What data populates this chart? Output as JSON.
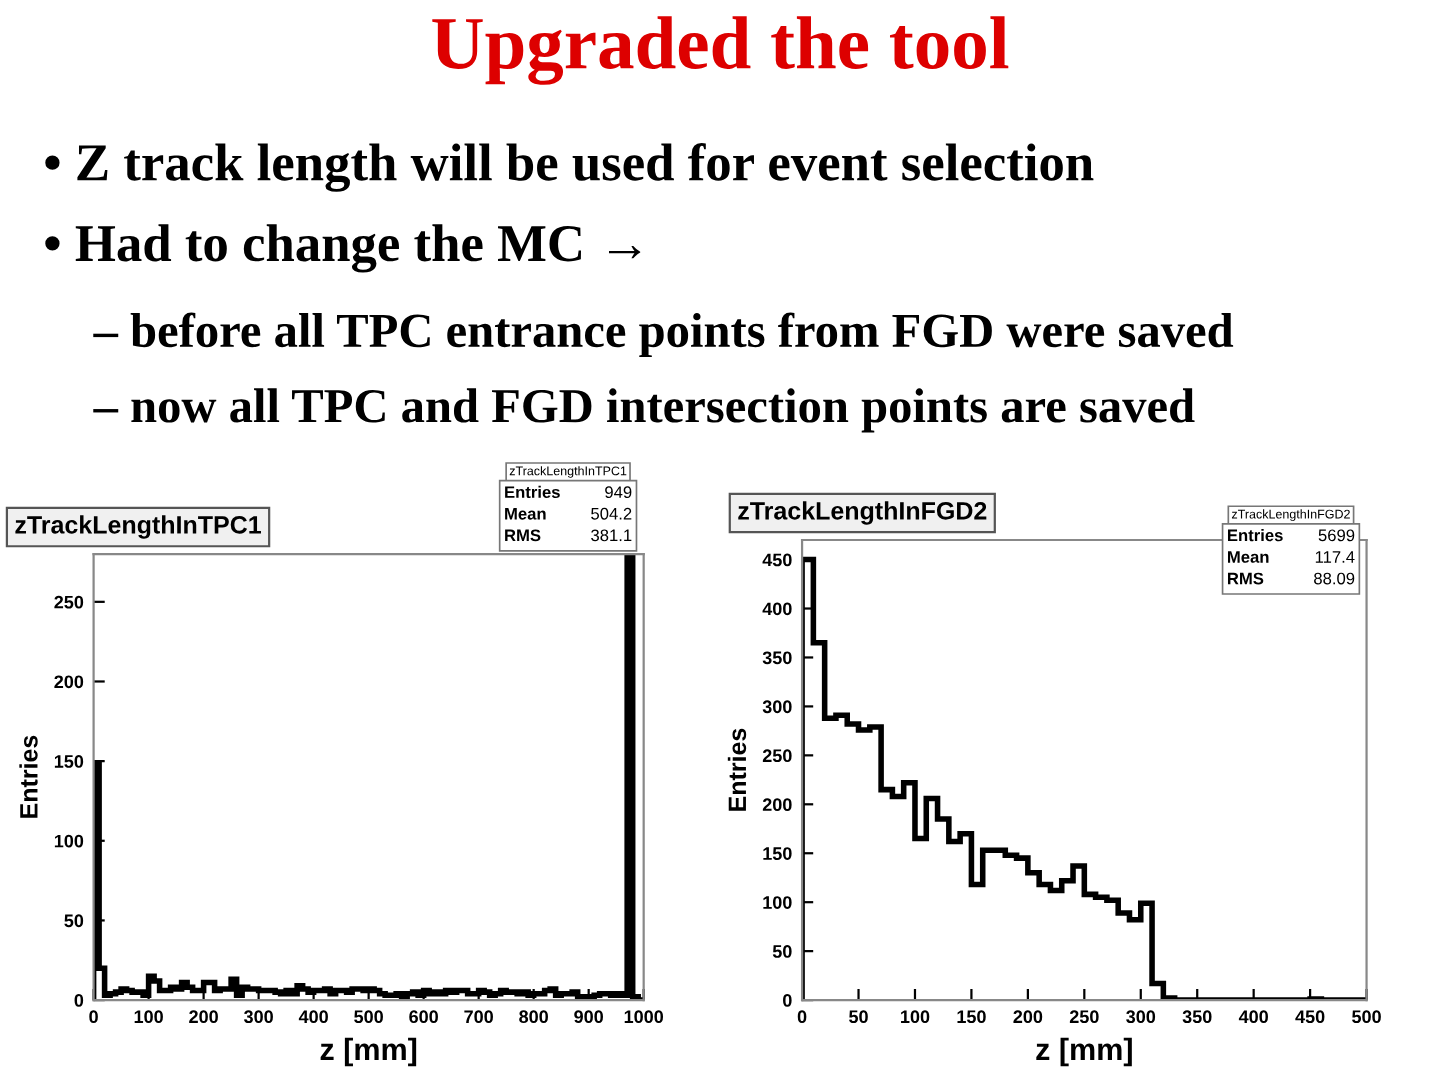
{
  "chart_data": [
    {
      "type": "other",
      "title": "Upgraded the tool",
      "color": "#dd0000",
      "annotations": [
        "• Z track length will be used for event selection",
        "• Had to change the MC →",
        "– before all TPC entrance points from FGD were saved",
        "– now all TPC and FGD intersection points are saved"
      ]
    },
    {
      "type": "histogram",
      "title": "zTrackLengthInTPC1",
      "xlabel": "z [mm]",
      "ylabel": "Entries",
      "color": "#000000",
      "bins": [
        0,
        10,
        20,
        30,
        40,
        50,
        60,
        70,
        80,
        90,
        100,
        110,
        120,
        130,
        140,
        150,
        160,
        170,
        180,
        190,
        200,
        210,
        220,
        230,
        240,
        250,
        260,
        270,
        280,
        290,
        300,
        310,
        320,
        330,
        340,
        350,
        360,
        370,
        380,
        390,
        400,
        410,
        420,
        430,
        440,
        450,
        460,
        470,
        480,
        490,
        500,
        510,
        520,
        530,
        540,
        550,
        560,
        570,
        580,
        590,
        600,
        610,
        620,
        630,
        640,
        650,
        660,
        670,
        680,
        690,
        700,
        710,
        720,
        730,
        740,
        750,
        760,
        770,
        780,
        790,
        800,
        810,
        820,
        830,
        840,
        850,
        860,
        870,
        880,
        890,
        900,
        910,
        920,
        930,
        940,
        950,
        960,
        970,
        980,
        990,
        1000
      ],
      "values": [
        148,
        20,
        3,
        4,
        5,
        7,
        6,
        5,
        5,
        3,
        15,
        12,
        6,
        6,
        8,
        7,
        11,
        8,
        6,
        6,
        11,
        11,
        6,
        7,
        7,
        13,
        3,
        8,
        7,
        7,
        6,
        6,
        6,
        5,
        4,
        6,
        4,
        9,
        7,
        5,
        6,
        6,
        7,
        4,
        6,
        6,
        5,
        7,
        7,
        6,
        7,
        6,
        4,
        3,
        3,
        4,
        2,
        4,
        5,
        3,
        6,
        4,
        5,
        4,
        6,
        5,
        6,
        6,
        4,
        4,
        6,
        5,
        3,
        4,
        6,
        5,
        5,
        4,
        5,
        3,
        4,
        4,
        6,
        7,
        3,
        4,
        4,
        5,
        2,
        2,
        2,
        3,
        4,
        4,
        3,
        4,
        3,
        280,
        2,
        0
      ],
      "xlim": [
        0,
        1000
      ],
      "ylim": [
        0,
        280
      ],
      "xticks": [
        0,
        100,
        200,
        300,
        400,
        500,
        600,
        700,
        800,
        900,
        1000
      ],
      "yticks": [
        0,
        50,
        100,
        150,
        200,
        250
      ],
      "annotations": [
        "zTrackLengthInTPC1",
        "Entries 949",
        "Mean 504.2",
        "RMS 381.1"
      ]
    },
    {
      "type": "histogram",
      "title": "zTrackLengthInFGD2",
      "xlabel": "z [mm]",
      "ylabel": "Entries",
      "color": "#000000",
      "bins": [
        0,
        10,
        20,
        30,
        40,
        50,
        60,
        70,
        80,
        90,
        100,
        110,
        120,
        130,
        140,
        150,
        160,
        170,
        180,
        190,
        200,
        210,
        220,
        230,
        240,
        250,
        260,
        270,
        280,
        290,
        300,
        310,
        320,
        330,
        340,
        350,
        360,
        370,
        380,
        390,
        400,
        410,
        420,
        430,
        440,
        450,
        460,
        470,
        480,
        490,
        500
      ],
      "values": [
        450,
        365,
        288,
        291,
        282,
        276,
        279,
        215,
        208,
        222,
        165,
        206,
        185,
        162,
        170,
        118,
        153,
        153,
        148,
        145,
        130,
        118,
        112,
        122,
        137,
        108,
        105,
        102,
        89,
        82,
        99,
        17,
        2,
        0,
        0,
        0,
        0,
        0,
        0,
        0,
        0,
        0,
        0,
        0,
        0,
        1,
        0,
        0,
        0,
        0
      ],
      "xlim": [
        0,
        500
      ],
      "ylim": [
        0,
        470
      ],
      "xticks": [
        0,
        50,
        100,
        150,
        200,
        250,
        300,
        350,
        400,
        450,
        500
      ],
      "yticks": [
        0,
        50,
        100,
        150,
        200,
        250,
        300,
        350,
        400,
        450
      ],
      "annotations": [
        "zTrackLengthInFGD2",
        "Entries 5699",
        "Mean 117.4",
        "RMS 88.09"
      ]
    }
  ]
}
